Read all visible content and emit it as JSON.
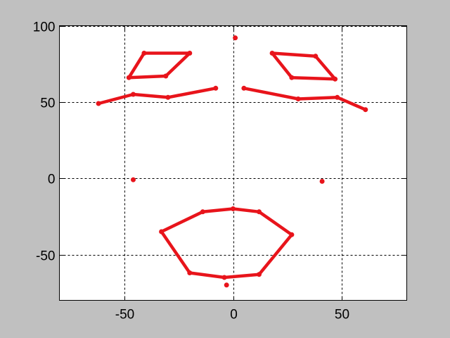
{
  "chart_data": {
    "type": "scatter",
    "title": "",
    "xlabel": "",
    "ylabel": "",
    "xlim": [
      -80,
      80
    ],
    "ylim": [
      -80,
      100
    ],
    "xticks": [
      -50,
      0,
      50
    ],
    "yticks": [
      -50,
      0,
      50,
      100
    ],
    "xtick_labels": [
      "-50",
      "0",
      "50"
    ],
    "ytick_labels": [
      "-50",
      "0",
      "50",
      "100"
    ],
    "grid": true,
    "color": "#e8141b",
    "background": "#c0c0c0",
    "plot_background": "#ffffff",
    "polylines": [
      {
        "closed": true,
        "points": [
          [
            -41,
            82
          ],
          [
            -20,
            82
          ],
          [
            -31,
            67
          ],
          [
            -48,
            66
          ]
        ]
      },
      {
        "closed": true,
        "points": [
          [
            18,
            82
          ],
          [
            38,
            80
          ],
          [
            47,
            65
          ],
          [
            27,
            66
          ]
        ]
      },
      {
        "closed": false,
        "points": [
          [
            -62,
            49
          ],
          [
            -46,
            55
          ],
          [
            -30,
            53
          ],
          [
            -8,
            59
          ]
        ]
      },
      {
        "closed": false,
        "points": [
          [
            5,
            59
          ],
          [
            30,
            52
          ],
          [
            48,
            53
          ],
          [
            61,
            45
          ]
        ]
      },
      {
        "closed": true,
        "points": [
          [
            -33,
            -35
          ],
          [
            -14,
            -22
          ],
          [
            0,
            -20
          ],
          [
            12,
            -22
          ],
          [
            27,
            -37
          ],
          [
            12,
            -63
          ],
          [
            -4,
            -65
          ],
          [
            -20,
            -62
          ]
        ]
      }
    ],
    "points": [
      [
        1,
        92
      ],
      [
        -46,
        -1
      ],
      [
        41,
        -2
      ],
      [
        -3,
        -70
      ]
    ]
  }
}
